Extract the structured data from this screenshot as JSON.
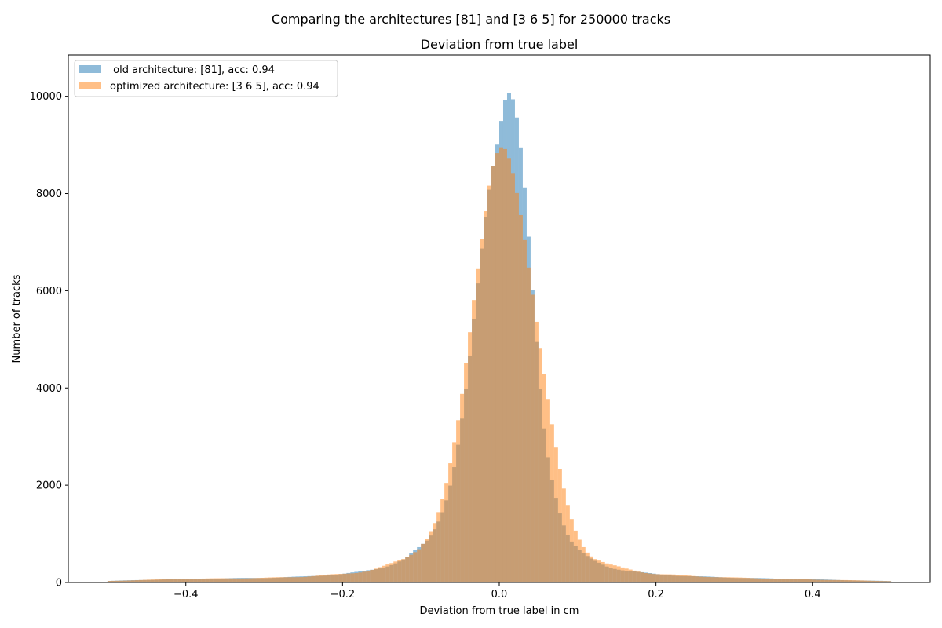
{
  "figure": {
    "suptitle": "Comparing the architectures [81] and [3 6 5] for 250000 tracks"
  },
  "chart_data": {
    "type": "bar",
    "title": "Deviation from true label",
    "xlabel": "Deviation from true label in cm",
    "ylabel": "Number of tracks",
    "xlim": [
      -0.55,
      0.55
    ],
    "ylim": [
      0,
      10850
    ],
    "xticks": [
      -0.4,
      -0.2,
      0.0,
      0.2,
      0.4
    ],
    "xtick_labels": [
      "−0.4",
      "−0.2",
      "0.0",
      "0.2",
      "0.4"
    ],
    "yticks": [
      0,
      2000,
      4000,
      6000,
      8000,
      10000
    ],
    "ytick_labels": [
      "0",
      "2000",
      "4000",
      "6000",
      "8000",
      "10000"
    ],
    "grid": false,
    "legend_position": "upper-left",
    "bins": {
      "start": -0.5,
      "end": 0.5,
      "count": 200
    },
    "series": [
      {
        "name": " old architecture: [81], acc: 0.94",
        "color": "#1f77b4",
        "opacity": 0.5,
        "anchors": [
          [
            -0.5,
            30
          ],
          [
            -0.45,
            55
          ],
          [
            -0.4,
            75
          ],
          [
            -0.35,
            85
          ],
          [
            -0.3,
            95
          ],
          [
            -0.25,
            120
          ],
          [
            -0.2,
            175
          ],
          [
            -0.18,
            210
          ],
          [
            -0.16,
            270
          ],
          [
            -0.14,
            360
          ],
          [
            -0.12,
            480
          ],
          [
            -0.1,
            720
          ],
          [
            -0.09,
            900
          ],
          [
            -0.08,
            1180
          ],
          [
            -0.07,
            1580
          ],
          [
            -0.06,
            2180
          ],
          [
            -0.05,
            3050
          ],
          [
            -0.04,
            4200
          ],
          [
            -0.03,
            5650
          ],
          [
            -0.02,
            7150
          ],
          [
            -0.01,
            8450
          ],
          [
            0.0,
            9450
          ],
          [
            0.005,
            10000
          ],
          [
            0.01,
            10300
          ],
          [
            0.015,
            10200
          ],
          [
            0.02,
            9850
          ],
          [
            0.025,
            9250
          ],
          [
            0.03,
            8450
          ],
          [
            0.035,
            7500
          ],
          [
            0.04,
            6400
          ],
          [
            0.045,
            5350
          ],
          [
            0.05,
            4350
          ],
          [
            0.055,
            3500
          ],
          [
            0.06,
            2820
          ],
          [
            0.07,
            1920
          ],
          [
            0.08,
            1300
          ],
          [
            0.09,
            900
          ],
          [
            0.1,
            690
          ],
          [
            0.11,
            540
          ],
          [
            0.12,
            440
          ],
          [
            0.14,
            320
          ],
          [
            0.16,
            255
          ],
          [
            0.18,
            205
          ],
          [
            0.2,
            170
          ],
          [
            0.25,
            125
          ],
          [
            0.3,
            100
          ],
          [
            0.35,
            80
          ],
          [
            0.4,
            65
          ],
          [
            0.45,
            45
          ],
          [
            0.5,
            28
          ]
        ]
      },
      {
        "name": "optimized architecture: [3 6 5], acc: 0.94",
        "color": "#ff7f0e",
        "opacity": 0.5,
        "anchors": [
          [
            -0.5,
            30
          ],
          [
            -0.45,
            55
          ],
          [
            -0.4,
            75
          ],
          [
            -0.35,
            85
          ],
          [
            -0.3,
            95
          ],
          [
            -0.25,
            120
          ],
          [
            -0.2,
            175
          ],
          [
            -0.18,
            210
          ],
          [
            -0.16,
            270
          ],
          [
            -0.14,
            360
          ],
          [
            -0.12,
            500
          ],
          [
            -0.1,
            760
          ],
          [
            -0.09,
            960
          ],
          [
            -0.08,
            1300
          ],
          [
            -0.07,
            1800
          ],
          [
            -0.06,
            2600
          ],
          [
            -0.05,
            3550
          ],
          [
            -0.04,
            4900
          ],
          [
            -0.03,
            6300
          ],
          [
            -0.02,
            7500
          ],
          [
            -0.01,
            8400
          ],
          [
            0.0,
            8780
          ],
          [
            0.01,
            8680
          ],
          [
            0.02,
            8150
          ],
          [
            0.03,
            7400
          ],
          [
            0.04,
            6350
          ],
          [
            0.05,
            5200
          ],
          [
            0.06,
            4050
          ],
          [
            0.07,
            2950
          ],
          [
            0.08,
            2050
          ],
          [
            0.09,
            1400
          ],
          [
            0.1,
            950
          ],
          [
            0.11,
            690
          ],
          [
            0.12,
            530
          ],
          [
            0.14,
            370
          ],
          [
            0.16,
            280
          ],
          [
            0.18,
            220
          ],
          [
            0.2,
            180
          ],
          [
            0.25,
            130
          ],
          [
            0.3,
            100
          ],
          [
            0.35,
            80
          ],
          [
            0.4,
            62
          ],
          [
            0.45,
            45
          ],
          [
            0.5,
            28
          ]
        ]
      }
    ]
  }
}
